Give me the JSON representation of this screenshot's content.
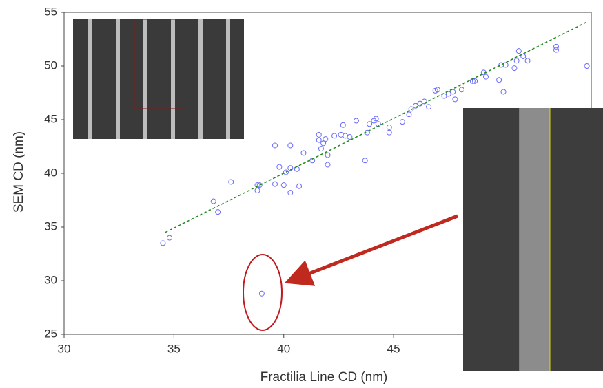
{
  "chart_data": {
    "type": "scatter",
    "x_label": "Fractilia Line CD (nm)",
    "y_label": "SEM CD (nm)",
    "xlim": [
      30,
      54
    ],
    "xticks": [
      30,
      35,
      40,
      45
    ],
    "ylim": [
      25,
      55
    ],
    "yticks": [
      25,
      30,
      35,
      40,
      45,
      50,
      55
    ],
    "series": [
      {
        "color": "#6a6aff",
        "marker": "hollow-circle",
        "x": [
          34.5,
          34.8,
          36.8,
          37.0,
          37.6,
          38.8,
          38.8,
          38.9,
          39.6,
          39.6,
          39.8,
          40.0,
          40.1,
          40.3,
          40.3,
          40.3,
          40.6,
          40.7,
          40.9,
          41.3,
          41.6,
          41.6,
          41.7,
          41.8,
          41.9,
          42.0,
          42.0,
          42.3,
          42.6,
          42.7,
          42.8,
          43.0,
          43.3,
          43.7,
          43.8,
          43.9,
          44.1,
          44.2,
          44.3,
          44.8,
          44.8,
          45.4,
          45.7,
          45.8,
          46.0,
          46.2,
          46.4,
          46.6,
          46.9,
          47.0,
          47.3,
          47.5,
          47.7,
          47.8,
          48.1,
          48.6,
          48.7,
          49.1,
          49.2,
          49.8,
          49.9,
          50.0,
          50.1,
          50.5,
          50.6,
          50.7,
          50.9,
          51.1,
          52.4,
          52.4,
          53.8,
          39.0
        ],
        "values": [
          33.5,
          34.0,
          37.4,
          36.4,
          39.2,
          38.9,
          38.4,
          38.9,
          42.6,
          39.0,
          40.6,
          38.9,
          40.1,
          42.6,
          40.5,
          38.2,
          40.4,
          38.8,
          41.9,
          41.2,
          43.1,
          43.6,
          42.3,
          42.8,
          43.2,
          41.7,
          40.8,
          43.5,
          43.6,
          44.5,
          43.5,
          43.4,
          44.9,
          41.2,
          43.8,
          44.6,
          44.9,
          45.1,
          44.6,
          43.8,
          44.3,
          44.8,
          45.5,
          46.0,
          46.3,
          46.5,
          46.7,
          46.2,
          47.7,
          47.8,
          47.2,
          47.4,
          47.6,
          46.9,
          47.8,
          48.6,
          48.6,
          49.4,
          49.0,
          48.7,
          50.1,
          47.6,
          50.1,
          49.8,
          50.5,
          51.4,
          50.9,
          50.5,
          51.8,
          51.5,
          50.0,
          28.8
        ]
      },
      {
        "color": "#1a8a1a",
        "marker": "dashed-line",
        "x": [
          34.6,
          53.8
        ],
        "values": [
          34.5,
          54.1
        ]
      }
    ]
  }
}
